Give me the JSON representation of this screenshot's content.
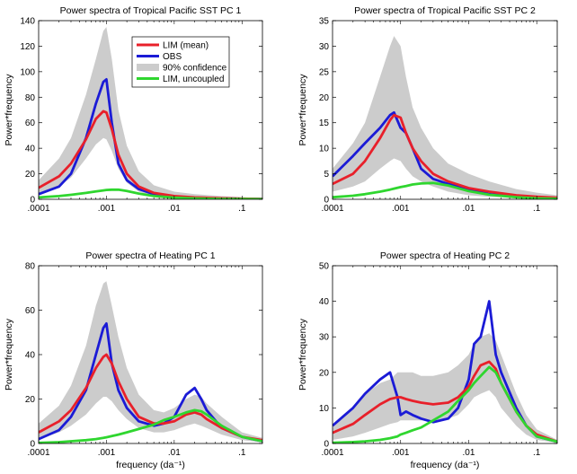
{
  "chart_data": [
    {
      "type": "line",
      "title": "Power spectra of Tropical Pacific SST PC 1",
      "xlabel": "",
      "ylabel": "Power*frequency",
      "xscale": "log",
      "xlim": [
        0.0001,
        0.2
      ],
      "ylim": [
        0,
        140
      ],
      "yticks": [
        0,
        20,
        40,
        60,
        80,
        100,
        120,
        140
      ],
      "xticklabels": [
        ".0001",
        ".001",
        ".01",
        ".1"
      ],
      "legend": {
        "placement": "top-center",
        "entries": [
          "LIM (mean)",
          "OBS",
          "90% confidence",
          "LIM, uncoupled"
        ]
      },
      "x": [
        0.0001,
        0.0002,
        0.0003,
        0.0005,
        0.0007,
        0.0009,
        0.001,
        0.0012,
        0.0015,
        0.002,
        0.003,
        0.005,
        0.01,
        0.02,
        0.05,
        0.1,
        0.2
      ],
      "series": [
        {
          "name": "LIM (mean)",
          "color": "#e8202a",
          "values": [
            9,
            18,
            28,
            47,
            63,
            69,
            68,
            55,
            35,
            20,
            10,
            5,
            2.5,
            1.5,
            0.8,
            0.5,
            0.3
          ]
        },
        {
          "name": "OBS",
          "color": "#1b1bd6",
          "values": [
            4,
            10,
            20,
            48,
            75,
            92,
            94,
            60,
            28,
            15,
            8,
            4,
            2,
            1,
            0.6,
            0.4,
            0.3
          ]
        },
        {
          "name": "90% confidence",
          "color": "#cccccc",
          "upper": [
            15,
            32,
            48,
            82,
            110,
            132,
            135,
            110,
            70,
            42,
            22,
            11,
            6,
            4,
            2.5,
            1.6,
            1
          ],
          "lower": [
            5,
            10,
            17,
            32,
            43,
            48,
            47,
            38,
            24,
            13,
            6,
            2.5,
            1,
            0.5,
            0.3,
            0.2,
            0.1
          ]
        },
        {
          "name": "LIM, uncoupled",
          "color": "#2fd62f",
          "values": [
            1.5,
            2.5,
            3.5,
            5,
            6.2,
            7,
            7.3,
            7.5,
            7.5,
            6.5,
            4.5,
            2.5,
            1.3,
            0.7,
            0.3,
            0.2,
            0.1
          ]
        }
      ]
    },
    {
      "type": "line",
      "title": "Power spectra of Tropical Pacific SST PC 2",
      "xlabel": "",
      "ylabel": "Power*frequency",
      "xscale": "log",
      "xlim": [
        0.0001,
        0.2
      ],
      "ylim": [
        0,
        35
      ],
      "yticks": [
        0,
        5,
        10,
        15,
        20,
        25,
        30,
        35
      ],
      "xticklabels": [
        ".0001",
        ".001",
        ".01",
        ".1"
      ],
      "x": [
        0.0001,
        0.0002,
        0.0003,
        0.0005,
        0.0007,
        0.0008,
        0.001,
        0.0012,
        0.0015,
        0.002,
        0.003,
        0.005,
        0.01,
        0.02,
        0.05,
        0.1,
        0.2
      ],
      "series": [
        {
          "name": "LIM (mean)",
          "color": "#e8202a",
          "values": [
            3,
            5,
            7.5,
            12,
            15.5,
            16.5,
            16,
            13,
            10,
            7.5,
            5,
            3.5,
            2.2,
            1.5,
            0.8,
            0.5,
            0.3
          ]
        },
        {
          "name": "OBS",
          "color": "#1b1bd6",
          "values": [
            4.5,
            8.5,
            11,
            14,
            16.5,
            17,
            14,
            13,
            10,
            6,
            4,
            3,
            2,
            1,
            0.5,
            0.3,
            0.2
          ]
        },
        {
          "name": "90% confidence",
          "color": "#cccccc",
          "upper": [
            6,
            11,
            15,
            24,
            30,
            32,
            30,
            24,
            18,
            14,
            10,
            7,
            5,
            3.5,
            2,
            1.3,
            0.8
          ],
          "lower": [
            1.5,
            2.5,
            3.5,
            6,
            7.5,
            8,
            7.5,
            6,
            4.5,
            3.5,
            2.5,
            1.5,
            0.8,
            0.5,
            0.3,
            0.2,
            0.1
          ]
        },
        {
          "name": "LIM, uncoupled",
          "color": "#2fd62f",
          "values": [
            0.4,
            0.7,
            1,
            1.5,
            1.9,
            2.1,
            2.4,
            2.6,
            2.9,
            3.1,
            3.2,
            2.7,
            1.6,
            0.9,
            0.4,
            0.2,
            0.1
          ]
        }
      ]
    },
    {
      "type": "line",
      "title": "Power spectra of Heating PC 1",
      "xlabel": "frequency (da⁻¹)",
      "ylabel": "Power*frequency",
      "xscale": "log",
      "xlim": [
        0.0001,
        0.2
      ],
      "ylim": [
        0,
        80
      ],
      "yticks": [
        0,
        20,
        40,
        60,
        80
      ],
      "xticklabels": [
        ".0001",
        ".001",
        ".01",
        ".1"
      ],
      "x": [
        0.0001,
        0.0002,
        0.0003,
        0.0005,
        0.0007,
        0.0009,
        0.001,
        0.0012,
        0.0015,
        0.002,
        0.003,
        0.005,
        0.007,
        0.01,
        0.015,
        0.02,
        0.025,
        0.03,
        0.05,
        0.1,
        0.2
      ],
      "series": [
        {
          "name": "LIM (mean)",
          "color": "#e8202a",
          "values": [
            5,
            10,
            15,
            25,
            34,
            39,
            40,
            36,
            28,
            20,
            12,
            9,
            9,
            10,
            13,
            14,
            13,
            11,
            7,
            3,
            1.5
          ]
        },
        {
          "name": "OBS",
          "color": "#1b1bd6",
          "values": [
            2,
            6,
            12,
            24,
            40,
            52,
            54,
            36,
            24,
            16,
            10,
            8,
            9,
            12,
            22,
            25,
            20,
            15,
            7,
            3,
            1
          ]
        },
        {
          "name": "90% confidence",
          "color": "#cccccc",
          "upper": [
            9,
            17,
            26,
            44,
            62,
            72,
            73,
            62,
            48,
            34,
            22,
            15,
            14,
            16,
            20,
            22,
            21,
            18,
            12,
            5,
            2.5
          ],
          "lower": [
            2,
            5,
            8,
            13,
            18,
            21,
            21,
            19,
            15,
            11,
            7,
            5,
            5,
            6,
            8,
            9,
            8,
            7,
            4,
            1.5,
            0.5
          ]
        },
        {
          "name": "LIM, uncoupled",
          "color": "#2fd62f",
          "values": [
            0.3,
            0.6,
            1,
            1.5,
            2,
            2.5,
            2.8,
            3.3,
            4,
            5,
            6.5,
            8.5,
            10.5,
            12,
            14,
            15,
            14.5,
            13,
            8,
            3,
            1
          ]
        }
      ]
    },
    {
      "type": "line",
      "title": "Power spectra of Heating PC 2",
      "xlabel": "frequency (da⁻¹)",
      "ylabel": "Power*frequency",
      "xscale": "log",
      "xlim": [
        0.0001,
        0.2
      ],
      "ylim": [
        0,
        50
      ],
      "yticks": [
        0,
        10,
        20,
        30,
        40,
        50
      ],
      "xticklabels": [
        ".0001",
        ".001",
        ".01",
        ".1"
      ],
      "x": [
        0.0001,
        0.0002,
        0.0003,
        0.0005,
        0.0007,
        0.0009,
        0.001,
        0.0012,
        0.0015,
        0.002,
        0.003,
        0.005,
        0.007,
        0.01,
        0.012,
        0.015,
        0.02,
        0.025,
        0.03,
        0.05,
        0.07,
        0.1,
        0.2
      ],
      "series": [
        {
          "name": "LIM (mean)",
          "color": "#e8202a",
          "values": [
            3,
            5.5,
            8,
            11,
            12.5,
            13,
            13,
            12.5,
            12,
            11.5,
            11,
            11.5,
            13,
            16,
            19,
            22,
            23,
            21,
            17,
            9,
            5,
            2.5,
            0.5
          ]
        },
        {
          "name": "OBS",
          "color": "#1b1bd6",
          "values": [
            5,
            10,
            14,
            18,
            20,
            13,
            8,
            9,
            8,
            7,
            6,
            7,
            10,
            18,
            28,
            30,
            40,
            25,
            20,
            10,
            5,
            2,
            0.5
          ]
        },
        {
          "name": "90% confidence",
          "color": "#cccccc",
          "upper": [
            4.5,
            10,
            14,
            17,
            18,
            20,
            20,
            20,
            20,
            19,
            19,
            20,
            22,
            25,
            28,
            30,
            31,
            29,
            25,
            14,
            8,
            4,
            1
          ],
          "lower": [
            1,
            2,
            3,
            4.5,
            5.5,
            6,
            6.5,
            6.5,
            6.5,
            6.5,
            6.5,
            7,
            8,
            11,
            13,
            14,
            15,
            13,
            10,
            5,
            2.5,
            1,
            0.2
          ]
        },
        {
          "name": "LIM, uncoupled",
          "color": "#2fd62f",
          "values": [
            0.2,
            0.4,
            0.6,
            1,
            1.5,
            2,
            2.5,
            3,
            3.7,
            4.5,
            6.5,
            9,
            12,
            15,
            17,
            19,
            21.5,
            20,
            17,
            9,
            5,
            2,
            0.5
          ]
        }
      ]
    }
  ]
}
